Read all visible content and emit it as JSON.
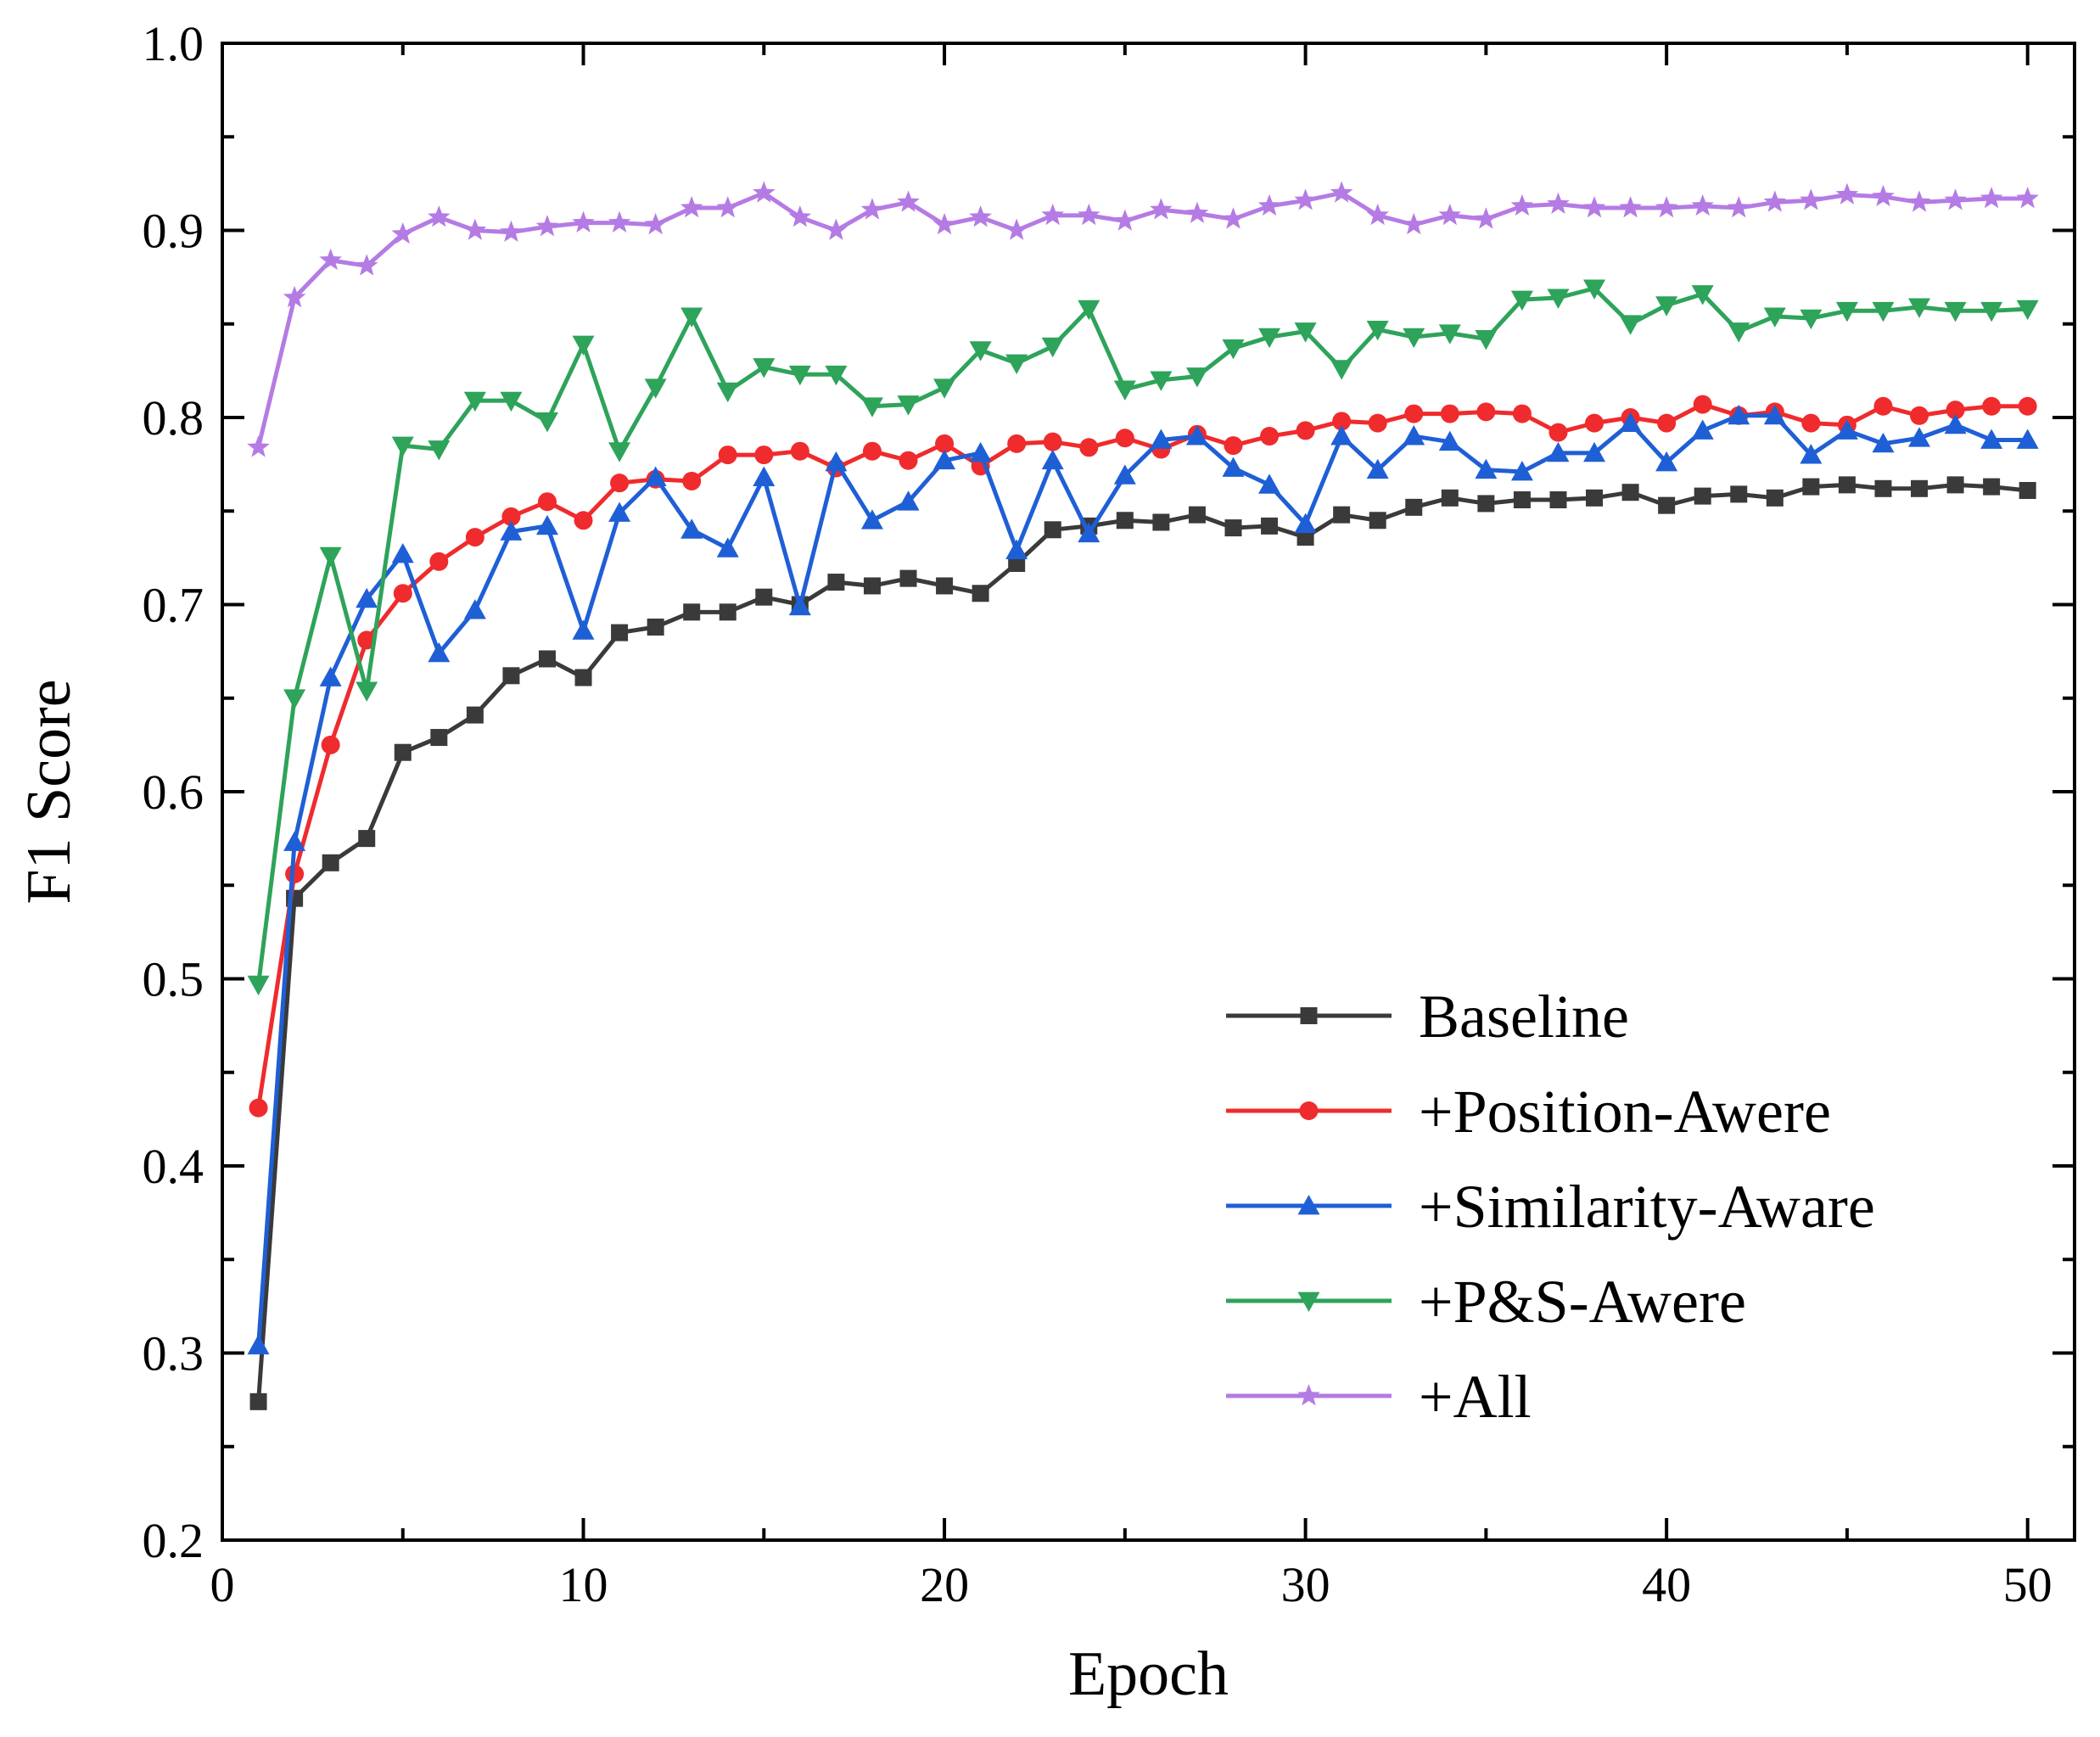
{
  "chart_data": {
    "type": "line",
    "title": "",
    "xlabel": "Epoch",
    "ylabel": "F1 Score",
    "xlim": [
      0,
      51.3
    ],
    "ylim": [
      0.2,
      1.0
    ],
    "xticks": [
      "0",
      "10",
      "20",
      "30",
      "40",
      "50"
    ],
    "yticks": [
      "0.2",
      "0.3",
      "0.4",
      "0.5",
      "0.6",
      "0.7",
      "0.8",
      "0.9",
      "1.0"
    ],
    "grid": false,
    "legend_position": "bottom-right",
    "x": [
      1,
      2,
      3,
      4,
      5,
      6,
      7,
      8,
      9,
      10,
      11,
      12,
      13,
      14,
      15,
      16,
      17,
      18,
      19,
      20,
      21,
      22,
      23,
      24,
      25,
      26,
      27,
      28,
      29,
      30,
      31,
      32,
      33,
      34,
      35,
      36,
      37,
      38,
      39,
      40,
      41,
      42,
      43,
      44,
      45,
      46,
      47,
      48,
      49,
      50
    ],
    "series": [
      {
        "name": "Baseline",
        "color": "#3a3a3a",
        "marker": "square",
        "values": [
          0.274,
          0.543,
          0.562,
          0.575,
          0.621,
          0.629,
          0.641,
          0.662,
          0.671,
          0.661,
          0.685,
          0.688,
          0.696,
          0.696,
          0.704,
          0.7,
          0.712,
          0.71,
          0.714,
          0.71,
          0.706,
          0.722,
          0.74,
          0.742,
          0.745,
          0.744,
          0.748,
          0.741,
          0.742,
          0.736,
          0.748,
          0.745,
          0.752,
          0.757,
          0.754,
          0.756,
          0.756,
          0.757,
          0.76,
          0.753,
          0.758,
          0.759,
          0.757,
          0.763,
          0.764,
          0.762,
          0.762,
          0.764,
          0.763,
          0.761
        ]
      },
      {
        "name": "+Position-Awere",
        "color": "#ef2b2d",
        "marker": "circle",
        "values": [
          0.431,
          0.556,
          0.625,
          0.681,
          0.706,
          0.723,
          0.736,
          0.747,
          0.755,
          0.745,
          0.765,
          0.767,
          0.766,
          0.78,
          0.78,
          0.782,
          0.773,
          0.782,
          0.777,
          0.786,
          0.774,
          0.786,
          0.787,
          0.784,
          0.789,
          0.783,
          0.791,
          0.785,
          0.79,
          0.793,
          0.798,
          0.797,
          0.802,
          0.802,
          0.803,
          0.802,
          0.792,
          0.797,
          0.8,
          0.797,
          0.807,
          0.801,
          0.803,
          0.797,
          0.796,
          0.806,
          0.801,
          0.804,
          0.806,
          0.806
        ]
      },
      {
        "name": "+Similarity-Aware",
        "color": "#1f5fd6",
        "marker": "triangle-up",
        "values": [
          0.304,
          0.573,
          0.661,
          0.703,
          0.727,
          0.674,
          0.697,
          0.739,
          0.742,
          0.686,
          0.749,
          0.768,
          0.74,
          0.73,
          0.768,
          0.699,
          0.776,
          0.745,
          0.755,
          0.777,
          0.781,
          0.729,
          0.777,
          0.738,
          0.769,
          0.788,
          0.79,
          0.773,
          0.764,
          0.743,
          0.79,
          0.772,
          0.79,
          0.787,
          0.772,
          0.771,
          0.781,
          0.781,
          0.797,
          0.776,
          0.793,
          0.801,
          0.801,
          0.78,
          0.793,
          0.786,
          0.789,
          0.796,
          0.788,
          0.788
        ]
      },
      {
        "name": "+P&S-Awere",
        "color": "#2ea35a",
        "marker": "triangle-down",
        "values": [
          0.497,
          0.65,
          0.726,
          0.654,
          0.785,
          0.783,
          0.809,
          0.809,
          0.798,
          0.839,
          0.782,
          0.816,
          0.854,
          0.814,
          0.827,
          0.823,
          0.823,
          0.806,
          0.807,
          0.816,
          0.836,
          0.829,
          0.838,
          0.858,
          0.815,
          0.82,
          0.822,
          0.837,
          0.843,
          0.846,
          0.826,
          0.847,
          0.843,
          0.845,
          0.842,
          0.863,
          0.864,
          0.869,
          0.85,
          0.86,
          0.866,
          0.846,
          0.854,
          0.853,
          0.857,
          0.857,
          0.859,
          0.857,
          0.857,
          0.858
        ]
      },
      {
        "name": "+All",
        "color": "#b57be4",
        "marker": "star",
        "values": [
          0.784,
          0.864,
          0.884,
          0.881,
          0.898,
          0.907,
          0.9,
          0.899,
          0.902,
          0.904,
          0.904,
          0.903,
          0.912,
          0.912,
          0.92,
          0.907,
          0.9,
          0.911,
          0.915,
          0.903,
          0.907,
          0.9,
          0.908,
          0.908,
          0.905,
          0.911,
          0.909,
          0.906,
          0.913,
          0.916,
          0.92,
          0.908,
          0.903,
          0.908,
          0.906,
          0.913,
          0.914,
          0.912,
          0.912,
          0.912,
          0.913,
          0.912,
          0.915,
          0.916,
          0.919,
          0.918,
          0.915,
          0.916,
          0.917,
          0.917
        ]
      }
    ]
  }
}
